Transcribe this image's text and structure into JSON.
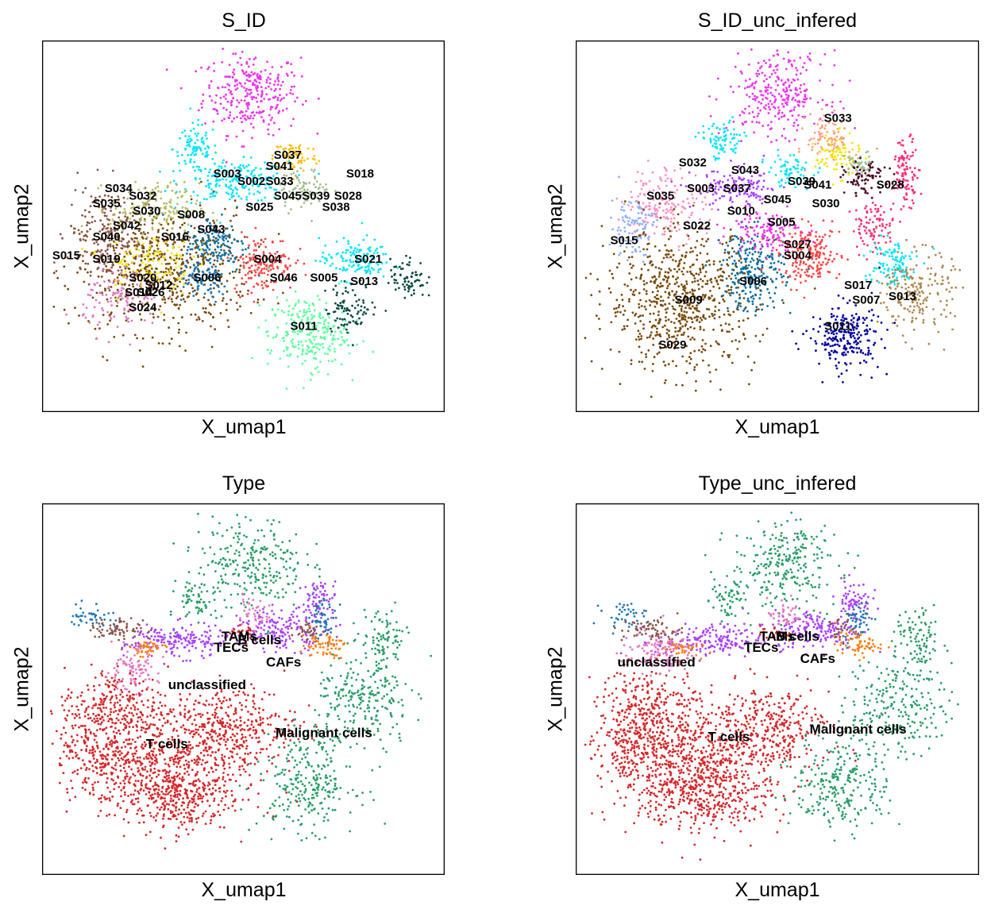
{
  "palette": {
    "red": "#d62728",
    "green": "#279e68",
    "purple": "#aa40fc",
    "orange": "#ff7f0e",
    "blue": "#1f77b4",
    "brown": "#8c564b",
    "pink": "#e377c2",
    "olive": "#b5bd61",
    "cyan": "#17becf",
    "magenta": "#ee33ee",
    "skyblue": "#00e5ff",
    "mint": "#5fff9f",
    "darkbrown": "#7a4a0a",
    "navy": "#0000a0",
    "tan": "#b08850",
    "teal": "#0a6fa0",
    "tomato": "#ff4444",
    "darkteal": "#0a4a40",
    "yellow": "#f5e600",
    "wine": "#4a0a2a",
    "hotpink": "#ff2d7a",
    "lightblue": "#8fb0ff",
    "rosepink": "#ff8fc0",
    "salmon": "#ffa07a",
    "sage": "#9fbf8f",
    "gold": "#ffc000",
    "black": "#000000"
  },
  "chart_data": [
    {
      "type": "scatter",
      "title": "S_ID",
      "xlabel": "X_umap1",
      "ylabel": "X_umap2",
      "grid": false,
      "legend": "on data",
      "cluster_labels": [
        {
          "text": "S037",
          "x": 0.61,
          "y": 0.69
        },
        {
          "text": "S041",
          "x": 0.59,
          "y": 0.66
        },
        {
          "text": "S018",
          "x": 0.79,
          "y": 0.64
        },
        {
          "text": "S003",
          "x": 0.46,
          "y": 0.64
        },
        {
          "text": "S002",
          "x": 0.52,
          "y": 0.62
        },
        {
          "text": "S033",
          "x": 0.59,
          "y": 0.62
        },
        {
          "text": "S045",
          "x": 0.61,
          "y": 0.58
        },
        {
          "text": "S039",
          "x": 0.68,
          "y": 0.58
        },
        {
          "text": "S028",
          "x": 0.76,
          "y": 0.58
        },
        {
          "text": "S034",
          "x": 0.19,
          "y": 0.6
        },
        {
          "text": "S032",
          "x": 0.25,
          "y": 0.58
        },
        {
          "text": "S035",
          "x": 0.16,
          "y": 0.56
        },
        {
          "text": "S030",
          "x": 0.26,
          "y": 0.54
        },
        {
          "text": "S008",
          "x": 0.37,
          "y": 0.53
        },
        {
          "text": "S025",
          "x": 0.54,
          "y": 0.55
        },
        {
          "text": "S038",
          "x": 0.73,
          "y": 0.55
        },
        {
          "text": "S043",
          "x": 0.42,
          "y": 0.49
        },
        {
          "text": "S042",
          "x": 0.21,
          "y": 0.5
        },
        {
          "text": "S040",
          "x": 0.16,
          "y": 0.47
        },
        {
          "text": "S016",
          "x": 0.33,
          "y": 0.47
        },
        {
          "text": "S015",
          "x": 0.06,
          "y": 0.42
        },
        {
          "text": "S019",
          "x": 0.16,
          "y": 0.41
        },
        {
          "text": "S004",
          "x": 0.56,
          "y": 0.41
        },
        {
          "text": "S021",
          "x": 0.81,
          "y": 0.41
        },
        {
          "text": "S020",
          "x": 0.25,
          "y": 0.36
        },
        {
          "text": "S006",
          "x": 0.41,
          "y": 0.36
        },
        {
          "text": "S046",
          "x": 0.6,
          "y": 0.36
        },
        {
          "text": "S005",
          "x": 0.7,
          "y": 0.36
        },
        {
          "text": "S013",
          "x": 0.8,
          "y": 0.35
        },
        {
          "text": "S012",
          "x": 0.29,
          "y": 0.34
        },
        {
          "text": "S014",
          "x": 0.24,
          "y": 0.32
        },
        {
          "text": "S026",
          "x": 0.27,
          "y": 0.32
        },
        {
          "text": "S024",
          "x": 0.25,
          "y": 0.28
        },
        {
          "text": "S011",
          "x": 0.65,
          "y": 0.23
        }
      ]
    },
    {
      "type": "scatter",
      "title": "S_ID_unc_infered",
      "xlabel": "X_umap1",
      "ylabel": "X_umap2",
      "grid": false,
      "legend": "on data",
      "cluster_labels": [
        {
          "text": "S033",
          "x": 0.65,
          "y": 0.79
        },
        {
          "text": "S032",
          "x": 0.29,
          "y": 0.67
        },
        {
          "text": "S043",
          "x": 0.42,
          "y": 0.65
        },
        {
          "text": "S003",
          "x": 0.31,
          "y": 0.6
        },
        {
          "text": "S037",
          "x": 0.4,
          "y": 0.6
        },
        {
          "text": "S039",
          "x": 0.56,
          "y": 0.62
        },
        {
          "text": "S041",
          "x": 0.6,
          "y": 0.61
        },
        {
          "text": "S028",
          "x": 0.78,
          "y": 0.61
        },
        {
          "text": "S035",
          "x": 0.21,
          "y": 0.58
        },
        {
          "text": "S045",
          "x": 0.5,
          "y": 0.57
        },
        {
          "text": "S030",
          "x": 0.62,
          "y": 0.56
        },
        {
          "text": "S010",
          "x": 0.41,
          "y": 0.54
        },
        {
          "text": "S005",
          "x": 0.51,
          "y": 0.51
        },
        {
          "text": "S022",
          "x": 0.3,
          "y": 0.5
        },
        {
          "text": "S015",
          "x": 0.12,
          "y": 0.46
        },
        {
          "text": "S027",
          "x": 0.55,
          "y": 0.45
        },
        {
          "text": "S004",
          "x": 0.55,
          "y": 0.42
        },
        {
          "text": "S006",
          "x": 0.44,
          "y": 0.35
        },
        {
          "text": "S017",
          "x": 0.7,
          "y": 0.34
        },
        {
          "text": "S009",
          "x": 0.28,
          "y": 0.3
        },
        {
          "text": "S007",
          "x": 0.72,
          "y": 0.3
        },
        {
          "text": "S013",
          "x": 0.81,
          "y": 0.31
        },
        {
          "text": "S011",
          "x": 0.65,
          "y": 0.23
        },
        {
          "text": "S029",
          "x": 0.24,
          "y": 0.18
        }
      ]
    },
    {
      "type": "scatter",
      "title": "Type",
      "xlabel": "X_umap1",
      "ylabel": "X_umap2",
      "grid": false,
      "legend": "on data",
      "cluster_labels": [
        {
          "text": "TAMs",
          "x": 0.49,
          "y": 0.64
        },
        {
          "text": "B cells",
          "x": 0.54,
          "y": 0.63
        },
        {
          "text": "TECs",
          "x": 0.47,
          "y": 0.61
        },
        {
          "text": "CAFs",
          "x": 0.6,
          "y": 0.57
        },
        {
          "text": "unclassified",
          "x": 0.41,
          "y": 0.51
        },
        {
          "text": "Malignant cells",
          "x": 0.7,
          "y": 0.38
        },
        {
          "text": "T cells",
          "x": 0.31,
          "y": 0.35
        }
      ]
    },
    {
      "type": "scatter",
      "title": "Type_unc_infered",
      "xlabel": "X_umap1",
      "ylabel": "X_umap2",
      "grid": false,
      "legend": "on data",
      "cluster_labels": [
        {
          "text": "TAMs",
          "x": 0.5,
          "y": 0.64
        },
        {
          "text": "B cells",
          "x": 0.55,
          "y": 0.64
        },
        {
          "text": "TECs",
          "x": 0.46,
          "y": 0.61
        },
        {
          "text": "CAFs",
          "x": 0.6,
          "y": 0.58
        },
        {
          "text": "unclassified",
          "x": 0.2,
          "y": 0.57
        },
        {
          "text": "Malignant cells",
          "x": 0.7,
          "y": 0.39
        },
        {
          "text": "T cells",
          "x": 0.38,
          "y": 0.37
        }
      ]
    }
  ]
}
